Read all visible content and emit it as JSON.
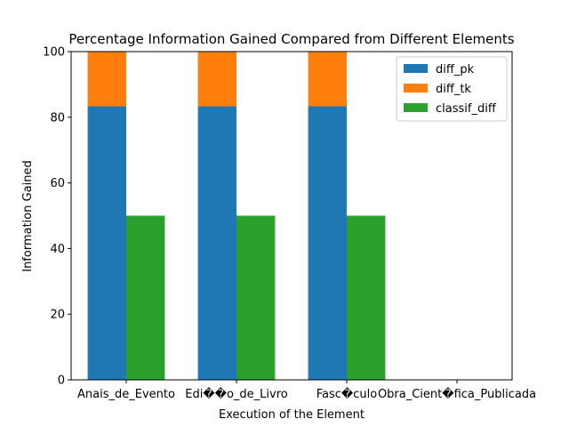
{
  "chart_data": {
    "type": "bar",
    "title": "Percentage Information Gained Compared from Different Elements",
    "xlabel": "Execution of the Element",
    "ylabel": "Information Gained",
    "ylim": [
      0,
      100
    ],
    "yticks": [
      0,
      20,
      40,
      60,
      80,
      100
    ],
    "categories": [
      "Anais_de_Evento",
      "Edi��o_de_Livro",
      "Fasc�culo",
      "Obra_Cient�fica_Publicada"
    ],
    "series": [
      {
        "name": "diff_pk",
        "values": [
          83.33,
          83.33,
          83.33,
          0
        ],
        "color": "#1f77b4",
        "group": "stacked"
      },
      {
        "name": "diff_tk",
        "values": [
          16.67,
          16.67,
          16.67,
          0
        ],
        "color": "#ff7f0e",
        "group": "stacked"
      },
      {
        "name": "classif_diff",
        "values": [
          50,
          50,
          50,
          0
        ],
        "color": "#2ca02c",
        "group": "side"
      }
    ],
    "legend_position": "top-right",
    "grid": false
  }
}
